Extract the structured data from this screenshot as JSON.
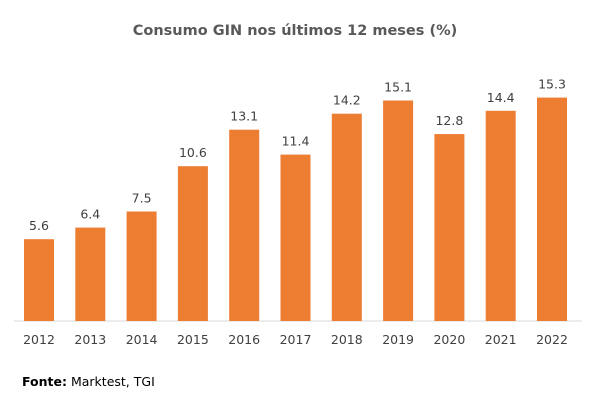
{
  "chart_data": {
    "type": "bar",
    "title": "Consumo GIN nos últimos 12 meses (%)",
    "xlabel": "",
    "ylabel": "",
    "categories": [
      "2012",
      "2013",
      "2014",
      "2015",
      "2016",
      "2017",
      "2018",
      "2019",
      "2020",
      "2021",
      "2022"
    ],
    "values": [
      5.6,
      6.4,
      7.5,
      10.6,
      13.1,
      11.4,
      14.2,
      15.1,
      12.8,
      14.4,
      15.3
    ],
    "data_labels": [
      "5.6",
      "6.4",
      "7.5",
      "10.6",
      "13.1",
      "11.4",
      "14.2",
      "15.1",
      "12.8",
      "14.4",
      "15.3"
    ],
    "ylim": [
      0,
      16
    ],
    "grid": false,
    "legend": "none",
    "bar_color": "#ED7D31",
    "axis_color": "#D9D9D9"
  },
  "source": {
    "label": "Fonte:",
    "text": "Marktest, TGI"
  }
}
